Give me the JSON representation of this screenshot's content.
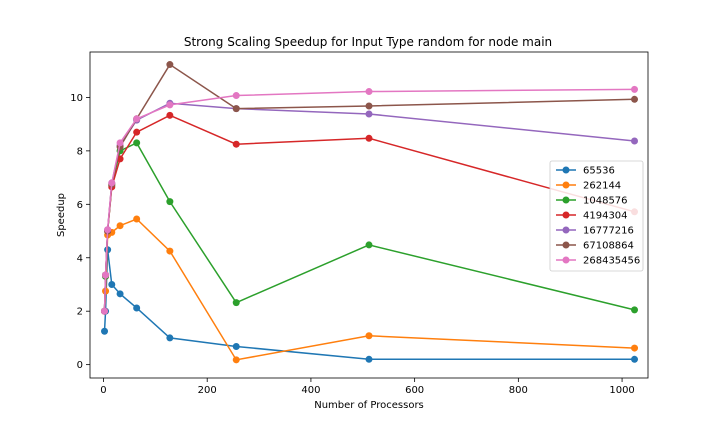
{
  "chart_data": {
    "type": "line",
    "title": "Strong Scaling Speedup for Input Type random for node main",
    "xlabel": "Number of Processors",
    "ylabel": "Speedup",
    "xlim": [
      -26,
      1050
    ],
    "ylim": [
      -0.5,
      11.7
    ],
    "xticks": [
      0,
      200,
      400,
      600,
      800,
      1000
    ],
    "yticks": [
      0,
      2,
      4,
      6,
      8,
      10
    ],
    "grid": false,
    "legend_position": "right",
    "x": [
      2,
      4,
      8,
      16,
      32,
      64,
      128,
      256,
      512,
      1024
    ],
    "series": [
      {
        "name": "65536",
        "color": "#1f77b4",
        "values": [
          1.25,
          2.0,
          4.3,
          3.0,
          2.65,
          2.12,
          1.0,
          0.68,
          0.2,
          0.2
        ]
      },
      {
        "name": "262144",
        "color": "#ff7f0e",
        "values": [
          2.0,
          2.75,
          4.85,
          4.95,
          5.2,
          5.45,
          4.25,
          0.18,
          1.08,
          0.62
        ]
      },
      {
        "name": "1048576",
        "color": "#2ca02c",
        "values": [
          2.0,
          3.3,
          5.0,
          6.7,
          8.0,
          8.3,
          6.1,
          2.32,
          4.48,
          2.05
        ]
      },
      {
        "name": "4194304",
        "color": "#d62728",
        "values": [
          2.0,
          3.35,
          5.0,
          6.65,
          7.7,
          8.7,
          9.33,
          8.25,
          8.47,
          5.72
        ]
      },
      {
        "name": "16777216",
        "color": "#9467bd",
        "values": [
          2.0,
          3.35,
          5.05,
          6.8,
          8.2,
          9.15,
          9.78,
          9.58,
          9.38,
          8.37
        ]
      },
      {
        "name": "67108864",
        "color": "#8c564b",
        "values": [
          2.0,
          3.35,
          5.0,
          6.75,
          8.15,
          9.2,
          11.23,
          9.58,
          9.68,
          9.93
        ]
      },
      {
        "name": "268435456",
        "color": "#e377c2",
        "values": [
          2.0,
          3.35,
          5.05,
          6.8,
          8.3,
          9.2,
          9.72,
          10.07,
          10.22,
          10.3
        ]
      }
    ]
  }
}
